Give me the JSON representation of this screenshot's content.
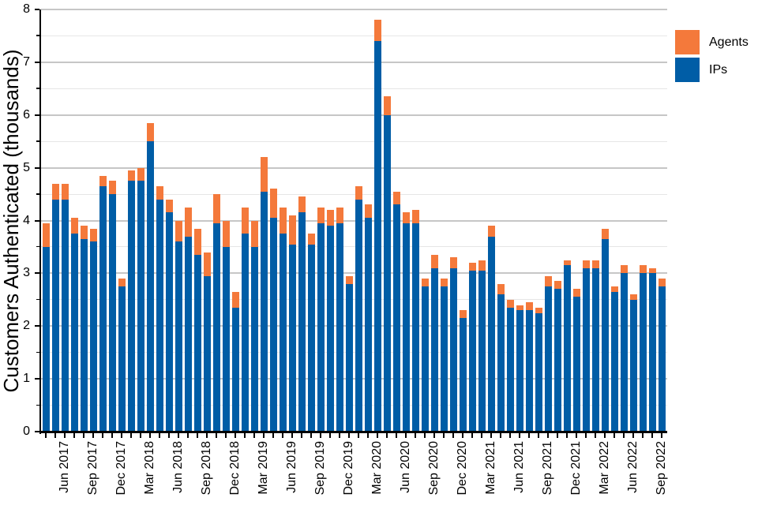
{
  "chart_data": {
    "type": "bar",
    "stacked": true,
    "title": "",
    "xlabel": "",
    "ylabel": "Customers Authenticated (thousands)",
    "ylim": [
      0,
      8
    ],
    "y_major_step": 1,
    "y_minor_step": 0.5,
    "grid": "horizontal major+minor",
    "legend_position": "top-right outside plot",
    "x_label_every": 3,
    "categories": [
      "Apr 2017",
      "May 2017",
      "Jun 2017",
      "Jul 2017",
      "Aug 2017",
      "Sep 2017",
      "Oct 2017",
      "Nov 2017",
      "Dec 2017",
      "Jan 2018",
      "Feb 2018",
      "Mar 2018",
      "Apr 2018",
      "May 2018",
      "Jun 2018",
      "Jul 2018",
      "Aug 2018",
      "Sep 2018",
      "Oct 2018",
      "Nov 2018",
      "Dec 2018",
      "Jan 2019",
      "Feb 2019",
      "Mar 2019",
      "Apr 2019",
      "May 2019",
      "Jun 2019",
      "Jul 2019",
      "Aug 2019",
      "Sep 2019",
      "Oct 2019",
      "Nov 2019",
      "Dec 2019",
      "Jan 2020",
      "Feb 2020",
      "Mar 2020",
      "Apr 2020",
      "May 2020",
      "Jun 2020",
      "Jul 2020",
      "Aug 2020",
      "Sep 2020",
      "Oct 2020",
      "Nov 2020",
      "Dec 2020",
      "Jan 2021",
      "Feb 2021",
      "Mar 2021",
      "Apr 2021",
      "May 2021",
      "Jun 2021",
      "Jul 2021",
      "Aug 2021",
      "Sep 2021",
      "Oct 2021",
      "Nov 2021",
      "Dec 2021",
      "Jan 2022",
      "Feb 2022",
      "Mar 2022",
      "Apr 2022",
      "May 2022",
      "Jun 2022",
      "Jul 2022",
      "Aug 2022",
      "Sep 2022"
    ],
    "visible_x_tick_labels": [
      "Jun 2017",
      "Sep 2017",
      "Dec 2017",
      "Mar 2018",
      "Jun 2018",
      "Sep 2018",
      "Dec 2018",
      "Mar 2019",
      "Jun 2019",
      "Sep 2019",
      "Dec 2019",
      "Mar 2020",
      "Jun 2020",
      "Sep 2020",
      "Dec 2020",
      "Mar 2021",
      "Jun 2021",
      "Sep 2021",
      "Dec 2021",
      "Mar 2022",
      "Jun 2022",
      "Sep 2022"
    ],
    "y_tick_labels": [
      "0",
      "1",
      "2",
      "3",
      "4",
      "5",
      "6",
      "7",
      "8"
    ],
    "stack_order_bottom_to_top": [
      "IPs",
      "Agents"
    ],
    "series": [
      {
        "name": "Agents",
        "color": "#f4793b",
        "values": [
          0.45,
          0.3,
          0.3,
          0.3,
          0.25,
          0.25,
          0.2,
          0.25,
          0.15,
          0.2,
          0.25,
          0.35,
          0.25,
          0.25,
          0.4,
          0.55,
          0.5,
          0.45,
          0.55,
          0.5,
          0.3,
          0.5,
          0.5,
          0.65,
          0.55,
          0.5,
          0.55,
          0.3,
          0.2,
          0.3,
          0.3,
          0.3,
          0.15,
          0.25,
          0.25,
          0.4,
          0.35,
          0.25,
          0.2,
          0.25,
          0.15,
          0.25,
          0.15,
          0.2,
          0.15,
          0.15,
          0.2,
          0.2,
          0.2,
          0.15,
          0.1,
          0.15,
          0.1,
          0.2,
          0.15,
          0.1,
          0.15,
          0.15,
          0.15,
          0.2,
          0.1,
          0.15,
          0.1,
          0.15,
          0.1,
          0.15
        ]
      },
      {
        "name": "IPs",
        "color": "#005da6",
        "values": [
          3.5,
          4.4,
          4.4,
          3.75,
          3.65,
          3.6,
          4.65,
          4.5,
          2.75,
          4.75,
          4.75,
          5.5,
          4.4,
          4.15,
          3.6,
          3.7,
          3.35,
          2.95,
          3.95,
          3.5,
          2.35,
          3.75,
          3.5,
          4.55,
          4.05,
          3.75,
          3.55,
          4.15,
          3.55,
          3.95,
          3.9,
          3.95,
          2.8,
          4.4,
          4.05,
          7.4,
          6.0,
          4.3,
          3.95,
          3.95,
          2.75,
          3.1,
          2.75,
          3.1,
          2.15,
          3.05,
          3.05,
          3.7,
          2.6,
          2.35,
          2.3,
          2.3,
          2.25,
          2.75,
          2.7,
          3.15,
          2.55,
          3.1,
          3.1,
          3.65,
          2.65,
          3.0,
          2.5,
          3.0,
          3.0,
          2.75
        ]
      }
    ]
  },
  "legend": {
    "agents_label": "Agents",
    "ips_label": "IPs"
  },
  "colors": {
    "agents": "#f4793b",
    "ips": "#005da6",
    "axis": "#000000",
    "grid_major": "#c6c6c6",
    "grid_minor": "#e6e6e6",
    "background": "#ffffff"
  }
}
